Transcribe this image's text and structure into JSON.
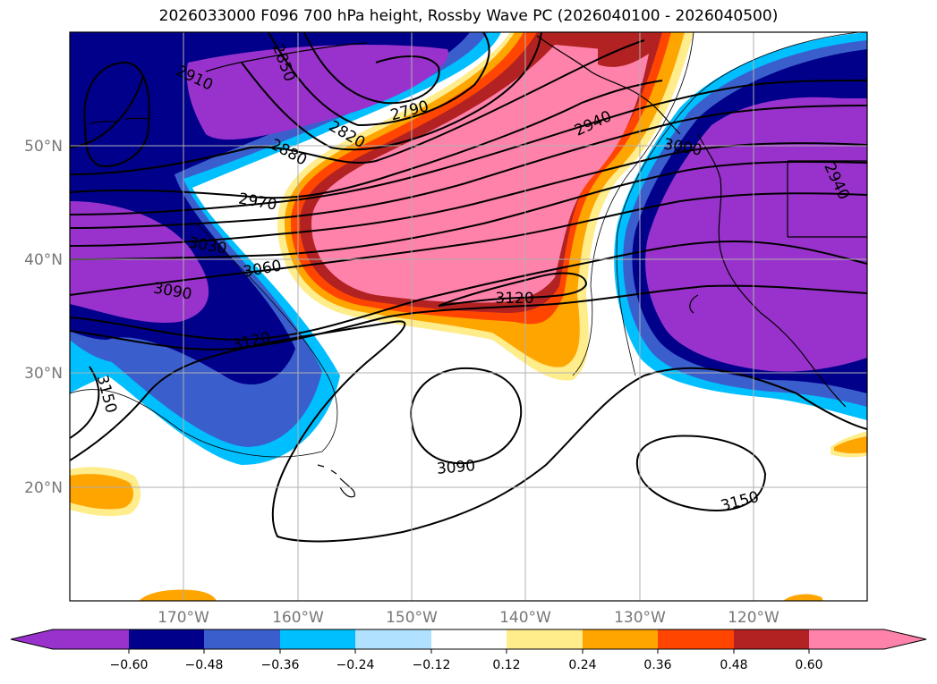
{
  "title": "2026033000 F096 700 hPa height, Rossby Wave PC (2026040100 - 2026040500)",
  "map": {
    "lat_labels": [
      "50°N",
      "40°N",
      "30°N",
      "20°N"
    ],
    "lon_labels": [
      "170°W",
      "160°W",
      "150°W",
      "140°W",
      "130°W",
      "120°W"
    ],
    "contour_labels": [
      "2910",
      "2850",
      "2790",
      "2820",
      "2880",
      "2940",
      "3000",
      "2940",
      "2970",
      "3030",
      "3060",
      "3090",
      "3120",
      "3120",
      "3150",
      "3090",
      "3150"
    ]
  },
  "colorbar": {
    "ticks": [
      "−0.60",
      "−0.48",
      "−0.36",
      "−0.24",
      "−0.12",
      "0.12",
      "0.24",
      "0.36",
      "0.48",
      "0.60"
    ],
    "colors": [
      "#9932cc",
      "#00008b",
      "#3a5fcd",
      "#00bfff",
      "#b0e2ff",
      "#ffffff",
      "#ffec8b",
      "#ffa500",
      "#ff4500",
      "#b22222",
      "#ff82ab"
    ]
  }
}
